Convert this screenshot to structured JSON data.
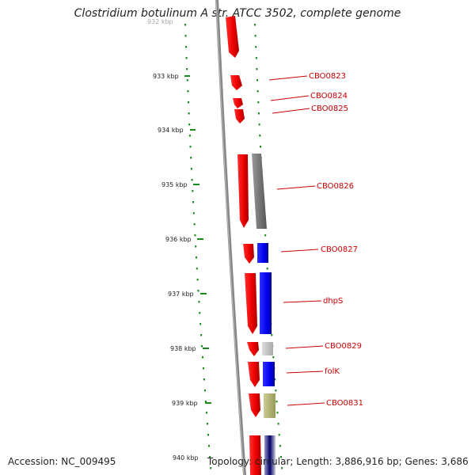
{
  "title": "Clostridium botulinum A str. ATCC 3502, complete genome",
  "footer": {
    "accession": "Accession: NC_009495",
    "summary": "Topology: circular; Length: 3,886,916 bp; Genes: 3,686"
  },
  "ticks": [
    "932 kbp",
    "933 kbp",
    "934 kbp",
    "935 kbp",
    "936 kbp",
    "937 kbp",
    "938 kbp",
    "939 kbp",
    "940 kbp"
  ],
  "genes": [
    {
      "label": "CBO0823",
      "color": "#cc0000"
    },
    {
      "label": "CBO0824",
      "color": "#cc0000"
    },
    {
      "label": "CBO0825",
      "color": "#cc0000"
    },
    {
      "label": "CBO0826",
      "color": "#cc0000"
    },
    {
      "label": "CBO0827",
      "color": "#cc0000"
    },
    {
      "label": "dhpS",
      "color": "#cc0000"
    },
    {
      "label": "CBO0829",
      "color": "#cc0000"
    },
    {
      "label": "folK",
      "color": "#cc0000"
    },
    {
      "label": "CBO0831",
      "color": "#cc0000"
    }
  ],
  "colors": {
    "gene_red": "#ff0000",
    "tick_green": "#1a8a1a",
    "backbone": "#888888",
    "cog_gray": "#777777",
    "cog_blue": "#0000ee",
    "cog_light": "#cccccc",
    "cog_olive": "#bbbb77"
  }
}
